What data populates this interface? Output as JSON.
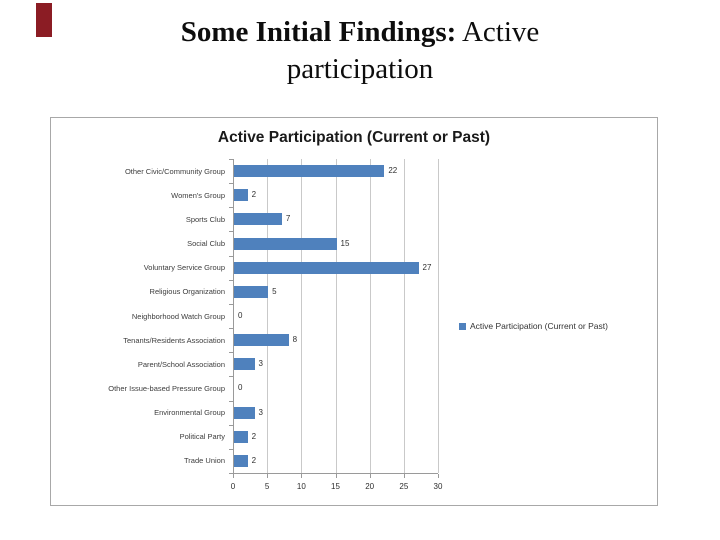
{
  "slide": {
    "title_bold": "Some Initial Findings:",
    "title_regular": " Active",
    "title_line2": "participation",
    "accent_color": "#8b1c24"
  },
  "chart": {
    "title": "Active Participation (Current or Past)",
    "legend_label": "Active Participation (Current or Past)",
    "bar_color": "#4f81bd"
  },
  "chart_data": {
    "type": "bar",
    "orientation": "horizontal",
    "title": "Active Participation (Current or Past)",
    "categories": [
      "Other Civic/Community Group",
      "Women's Group",
      "Sports Club",
      "Social Club",
      "Voluntary Service Group",
      "Religious Organization",
      "Neighborhood Watch Group",
      "Tenants/Residents Association",
      "Parent/School Association",
      "Other Issue-based Pressure Group",
      "Environmental Group",
      "Political Party",
      "Trade Union"
    ],
    "values": [
      22,
      2,
      7,
      15,
      27,
      5,
      0,
      8,
      3,
      0,
      3,
      2,
      2
    ],
    "xlim": [
      0,
      30
    ],
    "x_ticks": [
      0,
      5,
      10,
      15,
      20,
      25,
      30
    ],
    "grid": "vertical",
    "data_labels": true,
    "legend": [
      "Active Participation (Current or Past)"
    ],
    "legend_position": "right",
    "bar_color": "#4f81bd"
  }
}
